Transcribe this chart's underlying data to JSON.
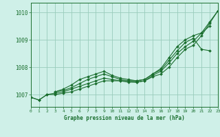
{
  "title": "Graphe pression niveau de la mer (hPa)",
  "background_color": "#cff0e8",
  "grid_color": "#99ccbb",
  "line_color": "#1a6e2e",
  "xlim": [
    0,
    23
  ],
  "ylim": [
    1006.55,
    1010.35
  ],
  "yticks": [
    1007,
    1008,
    1009,
    1010
  ],
  "xticks": [
    0,
    1,
    2,
    3,
    4,
    5,
    6,
    7,
    8,
    9,
    10,
    11,
    12,
    13,
    14,
    15,
    16,
    17,
    18,
    19,
    20,
    21,
    22,
    23
  ],
  "series": [
    [
      1006.9,
      1006.8,
      1007.0,
      1007.0,
      1007.05,
      1007.1,
      1007.2,
      1007.3,
      1007.4,
      1007.5,
      1007.5,
      1007.5,
      1007.45,
      1007.45,
      1007.5,
      1007.65,
      1007.75,
      1008.0,
      1008.35,
      1008.65,
      1008.8,
      1009.15,
      1009.6,
      1010.05
    ],
    [
      1006.9,
      1006.8,
      1007.0,
      1007.05,
      1007.1,
      1007.2,
      1007.3,
      1007.4,
      1007.5,
      1007.6,
      1007.55,
      1007.5,
      1007.5,
      1007.45,
      1007.5,
      1007.7,
      1007.85,
      1008.15,
      1008.5,
      1008.75,
      1008.95,
      1009.25,
      1009.65,
      1010.05
    ],
    [
      1006.9,
      null,
      null,
      1007.1,
      1007.15,
      1007.25,
      1007.4,
      1007.55,
      1007.65,
      1007.75,
      1007.65,
      1007.55,
      1007.5,
      1007.5,
      1007.55,
      1007.75,
      1007.9,
      1008.25,
      1008.6,
      1008.9,
      1009.05,
      1008.65,
      1008.6,
      null
    ],
    [
      1006.9,
      null,
      null,
      1007.1,
      1007.2,
      1007.35,
      1007.55,
      1007.65,
      1007.75,
      1007.85,
      1007.7,
      1007.6,
      1007.55,
      1007.5,
      1007.55,
      1007.75,
      1007.95,
      1008.35,
      1008.75,
      1009.0,
      1009.15,
      1009.25,
      1009.5,
      null
    ]
  ]
}
